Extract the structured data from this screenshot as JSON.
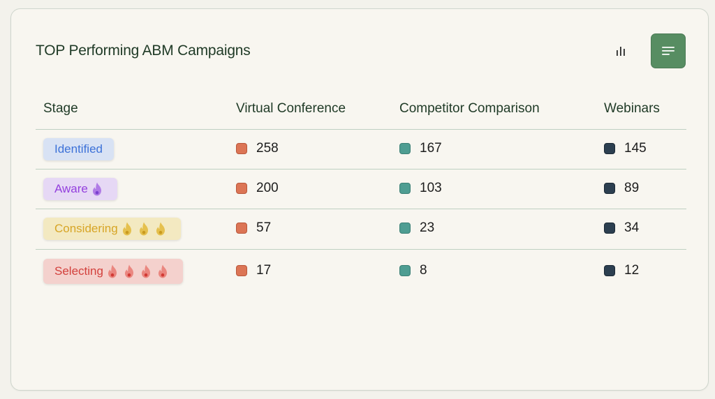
{
  "header": {
    "title": "TOP Performing ABM Campaigns"
  },
  "toolbar": {
    "chart_view_icon": "bar-chart-icon",
    "table_view_icon": "list-lines-icon",
    "active_view": "table"
  },
  "colors": {
    "virtual_conference": "#dc7555",
    "competitor_comparison": "#4e9d92",
    "webinars": "#2c3f50",
    "accent": "#578d62"
  },
  "table": {
    "columns": [
      "Stage",
      "Virtual Conference",
      "Competitor Comparison",
      "Webinars"
    ],
    "rows": [
      {
        "stage": "Identified",
        "flames": 0,
        "virtual_conference": "258",
        "competitor_comparison": "167",
        "webinars": "145"
      },
      {
        "stage": "Aware",
        "flames": 1,
        "virtual_conference": "200",
        "competitor_comparison": "103",
        "webinars": "89"
      },
      {
        "stage": "Considering",
        "flames": 3,
        "virtual_conference": "57",
        "competitor_comparison": "23",
        "webinars": "34"
      },
      {
        "stage": "Selecting",
        "flames": 4,
        "virtual_conference": "17",
        "competitor_comparison": "8",
        "webinars": "12"
      }
    ]
  }
}
